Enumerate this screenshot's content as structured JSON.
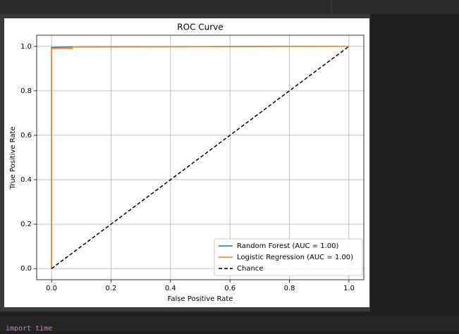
{
  "chart_data": {
    "type": "line",
    "title": "ROC Curve",
    "xlabel": "False Positive Rate",
    "ylabel": "True Positive Rate",
    "xlim": [
      -0.05,
      1.05
    ],
    "ylim": [
      -0.05,
      1.05
    ],
    "xticks": [
      {
        "value": 0,
        "label": "0.0"
      },
      0.2,
      0.4,
      0.6,
      0.8,
      {
        "value": 1,
        "label": "1.0"
      }
    ],
    "yticks": [
      {
        "value": 0,
        "label": "0.0"
      },
      0.2,
      0.4,
      0.6,
      0.8,
      {
        "value": 1,
        "label": "1.0"
      }
    ],
    "grid": true,
    "legend": "lower right",
    "series": [
      {
        "name": "Random Forest (AUC = 1.00)",
        "color": "#1f77b4",
        "linestyle": "solid",
        "x": [
          0,
          0,
          0.07,
          0.78,
          1
        ],
        "values": [
          0,
          0.995,
          0.997,
          1,
          1
        ]
      },
      {
        "name": "Logistic Regression (AUC = 1.00)",
        "color": "#ff7f0e",
        "linestyle": "solid",
        "x": [
          0,
          0,
          0.07,
          0.07,
          1
        ],
        "values": [
          0,
          0.99,
          0.99,
          0.997,
          1
        ]
      },
      {
        "name": "Chance",
        "color": "#000000",
        "linestyle": "dashed",
        "x": [
          0,
          1
        ],
        "values": [
          0,
          1
        ]
      }
    ]
  },
  "cell": {
    "code": "import time"
  }
}
